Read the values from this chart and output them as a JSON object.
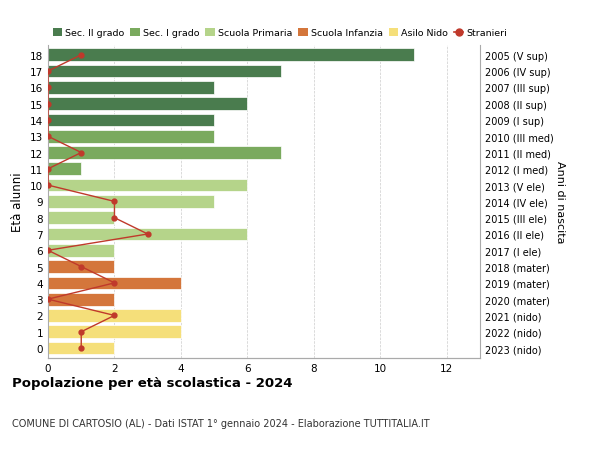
{
  "ages": [
    18,
    17,
    16,
    15,
    14,
    13,
    12,
    11,
    10,
    9,
    8,
    7,
    6,
    5,
    4,
    3,
    2,
    1,
    0
  ],
  "years": [
    "2005 (V sup)",
    "2006 (IV sup)",
    "2007 (III sup)",
    "2008 (II sup)",
    "2009 (I sup)",
    "2010 (III med)",
    "2011 (II med)",
    "2012 (I med)",
    "2013 (V ele)",
    "2014 (IV ele)",
    "2015 (III ele)",
    "2016 (II ele)",
    "2017 (I ele)",
    "2018 (mater)",
    "2019 (mater)",
    "2020 (mater)",
    "2021 (nido)",
    "2022 (nido)",
    "2023 (nido)"
  ],
  "bar_values": [
    11,
    7,
    5,
    6,
    5,
    5,
    7,
    1,
    6,
    5,
    2,
    6,
    2,
    2,
    4,
    2,
    4,
    4,
    2
  ],
  "bar_colors": [
    "#4a7c4e",
    "#4a7c4e",
    "#4a7c4e",
    "#4a7c4e",
    "#4a7c4e",
    "#7aaa5e",
    "#7aaa5e",
    "#7aaa5e",
    "#b5d48a",
    "#b5d48a",
    "#b5d48a",
    "#b5d48a",
    "#b5d48a",
    "#d4763b",
    "#d4763b",
    "#d4763b",
    "#f5df7a",
    "#f5df7a",
    "#f5df7a"
  ],
  "stranieri": [
    1,
    0,
    0,
    0,
    0,
    0,
    1,
    0,
    0,
    2,
    2,
    3,
    0,
    1,
    2,
    0,
    2,
    1,
    1
  ],
  "xlim": [
    0,
    13
  ],
  "ylabel": "Età alunni",
  "right_label": "Anni di nascita",
  "title": "Popolazione per età scolastica - 2024",
  "subtitle": "COMUNE DI CARTOSIO (AL) - Dati ISTAT 1° gennaio 2024 - Elaborazione TUTTITALIA.IT",
  "legend_labels": [
    "Sec. II grado",
    "Sec. I grado",
    "Scuola Primaria",
    "Scuola Infanzia",
    "Asilo Nido",
    "Stranieri"
  ],
  "legend_colors": [
    "#4a7c4e",
    "#7aaa5e",
    "#b5d48a",
    "#d4763b",
    "#f5df7a",
    "#c0392b"
  ],
  "bg_color": "#ffffff",
  "grid_color": "#cccccc",
  "stranieri_color": "#c0392b",
  "bar_height": 0.78,
  "xticks": [
    0,
    2,
    4,
    6,
    8,
    10,
    12
  ]
}
